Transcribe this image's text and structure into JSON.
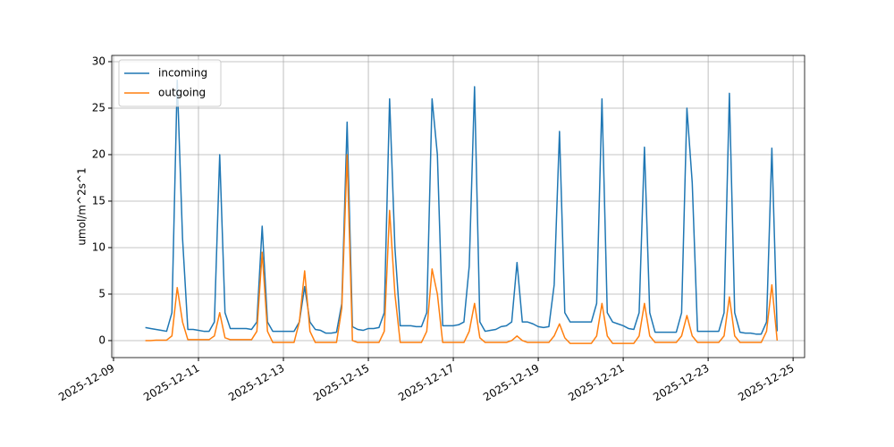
{
  "chart_data": {
    "type": "line",
    "ylabel": "umol/m^2s^1",
    "grid": true,
    "legend": "upper left",
    "x": [
      "2025-12-09T18:00",
      "2025-12-09T21:00",
      "2025-12-10T00:00",
      "2025-12-10T03:00",
      "2025-12-10T06:00",
      "2025-12-10T09:00",
      "2025-12-10T12:00",
      "2025-12-10T15:00",
      "2025-12-10T18:00",
      "2025-12-10T21:00",
      "2025-12-11T00:00",
      "2025-12-11T03:00",
      "2025-12-11T06:00",
      "2025-12-11T09:00",
      "2025-12-11T12:00",
      "2025-12-11T15:00",
      "2025-12-11T18:00",
      "2025-12-11T21:00",
      "2025-12-12T00:00",
      "2025-12-12T03:00",
      "2025-12-12T06:00",
      "2025-12-12T09:00",
      "2025-12-12T12:00",
      "2025-12-12T15:00",
      "2025-12-12T18:00",
      "2025-12-12T21:00",
      "2025-12-13T00:00",
      "2025-12-13T03:00",
      "2025-12-13T06:00",
      "2025-12-13T09:00",
      "2025-12-13T12:00",
      "2025-12-13T15:00",
      "2025-12-13T18:00",
      "2025-12-13T21:00",
      "2025-12-14T00:00",
      "2025-12-14T03:00",
      "2025-12-14T06:00",
      "2025-12-14T09:00",
      "2025-12-14T12:00",
      "2025-12-14T15:00",
      "2025-12-14T18:00",
      "2025-12-14T21:00",
      "2025-12-15T00:00",
      "2025-12-15T03:00",
      "2025-12-15T06:00",
      "2025-12-15T09:00",
      "2025-12-15T12:00",
      "2025-12-15T15:00",
      "2025-12-15T18:00",
      "2025-12-15T21:00",
      "2025-12-16T00:00",
      "2025-12-16T03:00",
      "2025-12-16T06:00",
      "2025-12-16T09:00",
      "2025-12-16T12:00",
      "2025-12-16T15:00",
      "2025-12-16T18:00",
      "2025-12-16T21:00",
      "2025-12-17T00:00",
      "2025-12-17T03:00",
      "2025-12-17T06:00",
      "2025-12-17T09:00",
      "2025-12-17T12:00",
      "2025-12-17T15:00",
      "2025-12-17T18:00",
      "2025-12-17T21:00",
      "2025-12-18T00:00",
      "2025-12-18T03:00",
      "2025-12-18T06:00",
      "2025-12-18T09:00",
      "2025-12-18T12:00",
      "2025-12-18T15:00",
      "2025-12-18T18:00",
      "2025-12-18T21:00",
      "2025-12-19T00:00",
      "2025-12-19T03:00",
      "2025-12-19T06:00",
      "2025-12-19T09:00",
      "2025-12-19T12:00",
      "2025-12-19T15:00",
      "2025-12-19T18:00",
      "2025-12-19T21:00",
      "2025-12-20T00:00",
      "2025-12-20T03:00",
      "2025-12-20T06:00",
      "2025-12-20T09:00",
      "2025-12-20T12:00",
      "2025-12-20T15:00",
      "2025-12-20T18:00",
      "2025-12-20T21:00",
      "2025-12-21T00:00",
      "2025-12-21T03:00",
      "2025-12-21T06:00",
      "2025-12-21T09:00",
      "2025-12-21T12:00",
      "2025-12-21T15:00",
      "2025-12-21T18:00",
      "2025-12-21T21:00",
      "2025-12-22T00:00",
      "2025-12-22T03:00",
      "2025-12-22T06:00",
      "2025-12-22T09:00",
      "2025-12-22T12:00",
      "2025-12-22T15:00",
      "2025-12-22T18:00",
      "2025-12-22T21:00",
      "2025-12-23T00:00",
      "2025-12-23T03:00",
      "2025-12-23T06:00",
      "2025-12-23T09:00",
      "2025-12-23T12:00",
      "2025-12-23T15:00",
      "2025-12-23T18:00",
      "2025-12-23T21:00",
      "2025-12-24T00:00",
      "2025-12-24T03:00",
      "2025-12-24T06:00",
      "2025-12-24T09:00",
      "2025-12-24T12:00",
      "2025-12-24T15:00"
    ],
    "series": [
      {
        "name": "incoming",
        "color": "#1f77b4",
        "values": [
          1.4,
          1.3,
          1.2,
          1.1,
          1.0,
          3,
          28,
          11,
          1.2,
          1.2,
          1.1,
          1.0,
          1.0,
          2,
          20,
          3,
          1.3,
          1.3,
          1.3,
          1.3,
          1.2,
          2,
          12.3,
          2,
          1.0,
          1.0,
          1.0,
          1.0,
          1.0,
          2,
          5.8,
          2,
          1.2,
          1.1,
          0.8,
          0.8,
          0.9,
          4,
          23.5,
          1.5,
          1.2,
          1.1,
          1.3,
          1.3,
          1.4,
          3,
          26,
          10,
          1.6,
          1.6,
          1.6,
          1.5,
          1.5,
          3,
          26,
          20,
          1.6,
          1.6,
          1.6,
          1.7,
          2,
          8,
          27.3,
          2,
          1.0,
          1.1,
          1.2,
          1.5,
          1.6,
          2,
          8.4,
          2,
          2,
          1.8,
          1.5,
          1.4,
          1.5,
          6,
          22.5,
          3,
          2,
          2,
          2,
          2,
          2,
          4,
          26,
          3,
          2,
          1.8,
          1.6,
          1.3,
          1.2,
          3,
          20.8,
          3,
          0.9,
          0.9,
          0.9,
          0.9,
          0.9,
          3,
          25,
          17,
          1.0,
          1.0,
          1.0,
          1.0,
          1.0,
          3,
          26.6,
          3,
          0.9,
          0.8,
          0.8,
          0.7,
          0.7,
          2,
          20.7,
          1
        ]
      },
      {
        "name": "outgoing",
        "color": "#ff7f0e",
        "values": [
          0,
          0,
          0.05,
          0.05,
          0.05,
          0.5,
          5.7,
          2,
          0.1,
          0.1,
          0.1,
          0.1,
          0.1,
          0.5,
          3,
          0.3,
          0.1,
          0.1,
          0.1,
          0.1,
          0.1,
          1,
          9.5,
          1,
          -0.2,
          -0.2,
          -0.2,
          -0.2,
          -0.2,
          2,
          7.5,
          1,
          -0.2,
          -0.2,
          -0.2,
          -0.2,
          -0.2,
          3.5,
          20,
          0,
          -0.2,
          -0.2,
          -0.2,
          -0.2,
          -0.2,
          1,
          14,
          5,
          -0.2,
          -0.2,
          -0.2,
          -0.2,
          -0.2,
          1,
          7.7,
          5,
          -0.2,
          -0.2,
          -0.2,
          -0.2,
          -0.2,
          1,
          4,
          0.3,
          -0.2,
          -0.2,
          -0.2,
          -0.2,
          -0.2,
          0,
          0.5,
          0,
          -0.2,
          -0.2,
          -0.2,
          -0.2,
          -0.2,
          0.5,
          1.8,
          0.3,
          -0.3,
          -0.3,
          -0.3,
          -0.3,
          -0.3,
          0.5,
          4,
          0.5,
          -0.3,
          -0.3,
          -0.3,
          -0.3,
          -0.3,
          0.5,
          4,
          0.5,
          -0.2,
          -0.2,
          -0.2,
          -0.2,
          -0.2,
          0.5,
          2.7,
          0.5,
          -0.2,
          -0.2,
          -0.2,
          -0.2,
          -0.2,
          0.5,
          4.7,
          0.5,
          -0.2,
          -0.2,
          -0.2,
          -0.2,
          -0.2,
          1,
          6,
          0
        ]
      }
    ],
    "xlim": [
      "2025-12-08T23:00",
      "2025-12-25T06:30"
    ],
    "xticks": [
      "2025-12-09",
      "2025-12-11",
      "2025-12-13",
      "2025-12-15",
      "2025-12-17",
      "2025-12-19",
      "2025-12-21",
      "2025-12-23",
      "2025-12-25"
    ],
    "ylim": [
      -1.83,
      30.67
    ],
    "yticks": [
      0,
      5,
      10,
      15,
      20,
      25,
      30
    ]
  }
}
